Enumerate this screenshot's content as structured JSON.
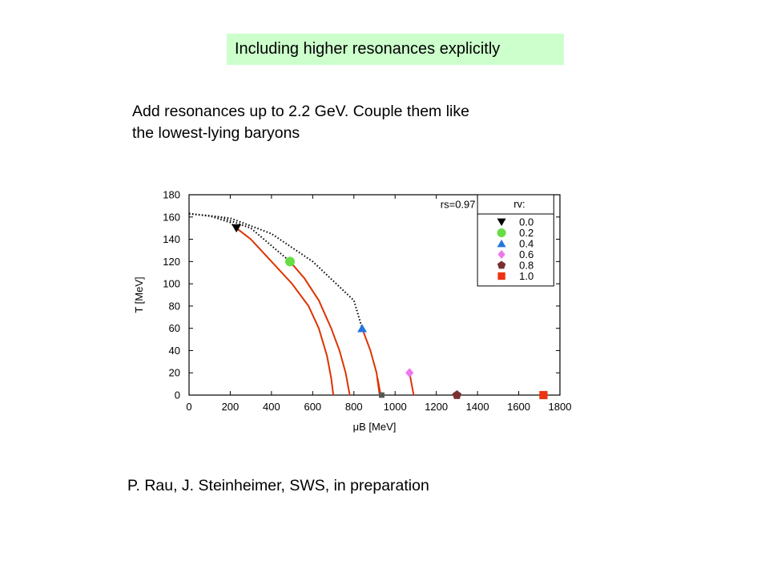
{
  "slide": {
    "title": "Including higher resonances explicitly",
    "description_lines": [
      "Add resonances up to 2.2 GeV. Couple them like",
      "the lowest-lying baryons"
    ],
    "citation": "P. Rau, J. Steinheimer, SWS, in preparation"
  },
  "chart_data": {
    "type": "line",
    "xlabel": "μB [MeV]",
    "ylabel": "T [MeV]",
    "xlim": [
      0,
      1800
    ],
    "ylim": [
      0,
      180
    ],
    "xticks": [
      0,
      200,
      400,
      600,
      800,
      1000,
      1200,
      1400,
      1600,
      1800
    ],
    "yticks": [
      0,
      20,
      40,
      60,
      80,
      100,
      120,
      140,
      160,
      180
    ],
    "grid": false,
    "annotation": "rs=0.97",
    "legend": {
      "title": "rv:",
      "position": "top-right",
      "entries": [
        {
          "label": "0.0",
          "marker": "triangle-down",
          "color": "#000000"
        },
        {
          "label": "0.2",
          "marker": "circle",
          "color": "#66dd44"
        },
        {
          "label": "0.4",
          "marker": "triangle-up",
          "color": "#2277dd"
        },
        {
          "label": "0.6",
          "marker": "diamond",
          "color": "#ee77ee"
        },
        {
          "label": "0.8",
          "marker": "pentagon",
          "color": "#7a3030"
        },
        {
          "label": "1.0",
          "marker": "square",
          "color": "#ee3311"
        }
      ]
    },
    "crossover_lines": [
      {
        "style": "dotted",
        "color": "#000000",
        "points": [
          [
            0,
            163
          ],
          [
            100,
            161
          ],
          [
            200,
            155
          ],
          [
            230,
            150
          ]
        ]
      },
      {
        "style": "dotted",
        "color": "#000000",
        "points": [
          [
            0,
            163
          ],
          [
            150,
            160
          ],
          [
            300,
            150
          ],
          [
            490,
            120
          ]
        ]
      },
      {
        "style": "dotted",
        "color": "#000000",
        "points": [
          [
            0,
            163
          ],
          [
            200,
            159
          ],
          [
            400,
            145
          ],
          [
            600,
            120
          ],
          [
            800,
            85
          ],
          [
            840,
            60
          ]
        ]
      }
    ],
    "first_order_lines": [
      {
        "color": "#dd3300",
        "points": [
          [
            230,
            150
          ],
          [
            300,
            140
          ],
          [
            400,
            120
          ],
          [
            500,
            100
          ],
          [
            580,
            80
          ],
          [
            630,
            60
          ],
          [
            670,
            35
          ],
          [
            690,
            15
          ],
          [
            700,
            0
          ]
        ]
      },
      {
        "color": "#dd3300",
        "points": [
          [
            490,
            120
          ],
          [
            560,
            105
          ],
          [
            630,
            85
          ],
          [
            690,
            60
          ],
          [
            730,
            40
          ],
          [
            760,
            20
          ],
          [
            780,
            0
          ]
        ]
      },
      {
        "color": "#dd3300",
        "points": [
          [
            840,
            60
          ],
          [
            880,
            40
          ],
          [
            910,
            20
          ],
          [
            925,
            0
          ]
        ]
      },
      {
        "color": "#dd3300",
        "points": [
          [
            915,
            15
          ],
          [
            930,
            0
          ]
        ]
      },
      {
        "color": "#dd3300",
        "points": [
          [
            1070,
            20
          ],
          [
            1080,
            10
          ],
          [
            1090,
            0
          ]
        ]
      }
    ],
    "critical_points": [
      {
        "rv": "0.0",
        "x": 230,
        "y": 150,
        "marker": "triangle-down",
        "color": "#000000"
      },
      {
        "rv": "0.2",
        "x": 490,
        "y": 120,
        "marker": "circle",
        "color": "#66dd44"
      },
      {
        "rv": "0.4",
        "x": 840,
        "y": 60,
        "marker": "triangle-up",
        "color": "#2277dd"
      },
      {
        "rv": "0.6",
        "x": 1070,
        "y": 20,
        "marker": "diamond",
        "color": "#ee77ee"
      },
      {
        "rv": "0.8",
        "x": 1300,
        "y": 0,
        "marker": "pentagon",
        "color": "#7a3030"
      },
      {
        "rv": "1.0",
        "x": 1720,
        "y": 0,
        "marker": "square",
        "color": "#ee3311"
      }
    ],
    "extra_points": [
      {
        "x": 935,
        "y": 0,
        "marker": "square",
        "color": "#555555"
      }
    ]
  }
}
